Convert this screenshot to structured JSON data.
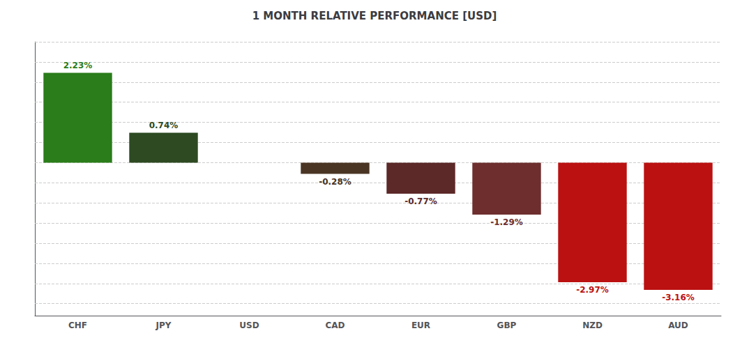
{
  "chart_data": {
    "type": "bar",
    "title": "1 MONTH RELATIVE PERFORMANCE [USD]",
    "categories": [
      "CHF",
      "JPY",
      "USD",
      "CAD",
      "EUR",
      "GBP",
      "NZD",
      "AUD"
    ],
    "values": [
      2.23,
      0.74,
      0.0,
      -0.28,
      -0.77,
      -1.29,
      -2.97,
      -3.16
    ],
    "value_labels": [
      "2.23%",
      "0.74%",
      null,
      "-0.28%",
      "-0.77%",
      "-1.29%",
      "-2.97%",
      "-3.16%"
    ],
    "data_labels": true,
    "colors": [
      "#2a7d1a",
      "#2d4a22",
      "#333333",
      "#4a3525",
      "#5c2828",
      "#6e2e2e",
      "#bb1111",
      "#bb1111"
    ],
    "ylim": [
      -3.8,
      3.0
    ],
    "yticks": [
      -3.5,
      -3,
      -2.5,
      -2,
      -1.5,
      -1,
      -0.5,
      0,
      0.5,
      1,
      1.5,
      2,
      2.5,
      3
    ],
    "grid": true,
    "tick_labels": "x"
  }
}
